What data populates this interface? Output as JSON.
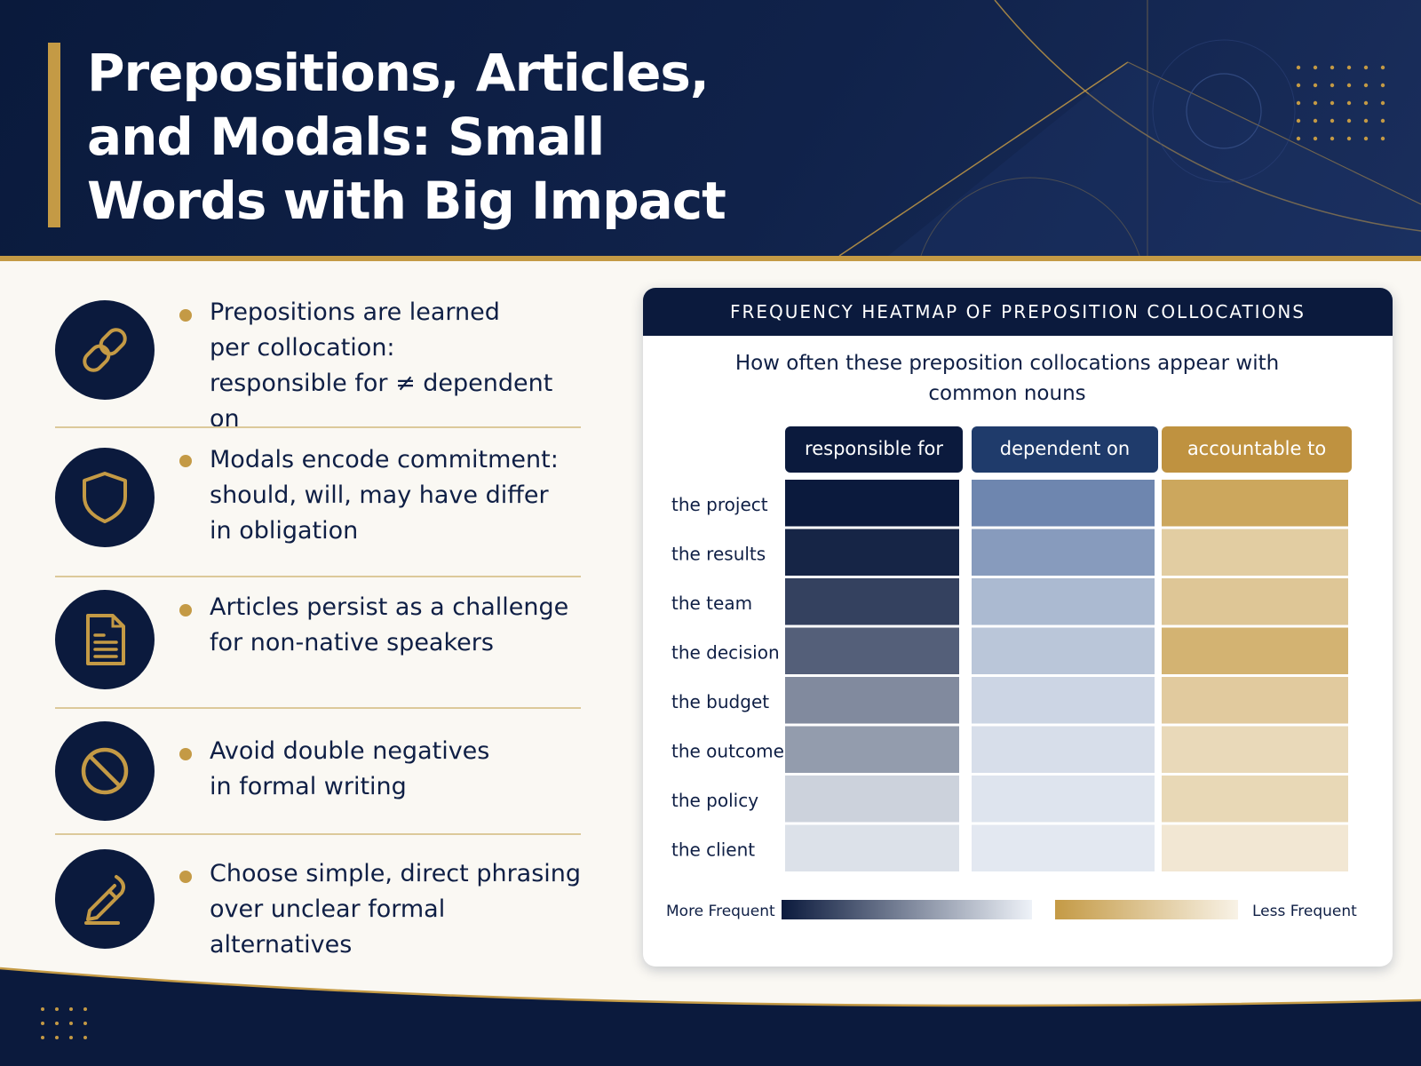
{
  "title": "Prepositions, Articles, and Modals: Small Words with Big Impact",
  "bullets": [
    {
      "icon": "link-icon",
      "text": "Prepositions are learned\nper collocation:\nresponsible for ≠ dependent on"
    },
    {
      "icon": "shield-icon",
      "text": "Modals encode commitment:\nshould, will, may have differ\nin obligation"
    },
    {
      "icon": "document-icon",
      "text": "Articles persist as a challenge\nfor non-native speakers"
    },
    {
      "icon": "prohibition-icon",
      "text": "Avoid double negatives\nin formal writing"
    },
    {
      "icon": "pen-icon",
      "text": "Choose simple, direct phrasing\nover unclear formal alternatives"
    }
  ],
  "panel": {
    "heading": "FREQUENCY HEATMAP OF PREPOSITION COLLOCATIONS",
    "subtitle": "How often these preposition collocations appear with common nouns"
  },
  "colors": {
    "navy": "#0b1a3d",
    "blue_scale_high": "#0b1a3d",
    "blue_scale_low": "#eef2f8",
    "gold": "#c49a45",
    "gold_scale_low": "#f8f2e6",
    "paper": "#faf8f3"
  },
  "chart_data": {
    "type": "heatmap",
    "title": "FREQUENCY HEATMAP OF PREPOSITION COLLOCATIONS",
    "subtitle": "How often these preposition collocations appear with common nouns",
    "columns": [
      {
        "label": "responsible for",
        "palette": "navy"
      },
      {
        "label": "dependent on",
        "palette": "slate"
      },
      {
        "label": "accountable to",
        "palette": "gold"
      }
    ],
    "rows": [
      "the project",
      "the results",
      "the team",
      "the decision",
      "the budget",
      "the outcome",
      "the policy",
      "the client"
    ],
    "values": [
      [
        1.0,
        0.72,
        0.85
      ],
      [
        0.95,
        0.58,
        0.42
      ],
      [
        0.82,
        0.38,
        0.5
      ],
      [
        0.68,
        0.3,
        0.72
      ],
      [
        0.48,
        0.2,
        0.45
      ],
      [
        0.4,
        0.14,
        0.28
      ],
      [
        0.15,
        0.1,
        0.3
      ],
      [
        0.08,
        0.07,
        0.12
      ]
    ],
    "value_scale": [
      0,
      1
    ],
    "legend": {
      "left_label": "More Frequent",
      "right_label": "Less Frequent",
      "placement": "bottom"
    }
  }
}
